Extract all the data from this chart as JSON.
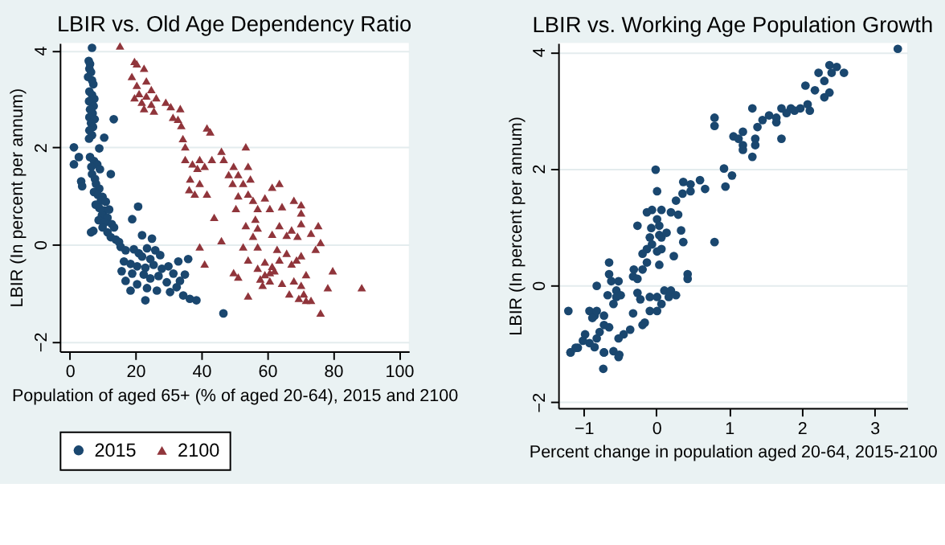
{
  "chart_data": [
    {
      "type": "scatter",
      "title": "LBIR vs. Old Age Dependency Ratio",
      "xlabel": "Population of aged 65+ (% of aged 20-64), 2015 and 2100",
      "ylabel": "LBIR (In percent per annum)",
      "xlim": [
        -3,
        103
      ],
      "ylim": [
        -2.2,
        4.15
      ],
      "xticks": [
        0,
        20,
        40,
        60,
        80,
        100
      ],
      "yticks": [
        -2,
        0,
        2,
        4
      ],
      "grid": "y",
      "legend": "bottom",
      "series": [
        {
          "name": "2015",
          "color": "#1a476f",
          "marker": "circle",
          "x": [
            6.8,
            5.8,
            6.2,
            6.0,
            6.5,
            5.6,
            6.8,
            7.2,
            6.0,
            6.8,
            7.5,
            5.9,
            7.3,
            6.2,
            7.0,
            6.0,
            7.6,
            6.5,
            7.1,
            6.0,
            6.8,
            5.9,
            13.4,
            10.5,
            1.3,
            9.0,
            1.3,
            2.8,
            6.2,
            7.4,
            8.4,
            6.6,
            9.2,
            3.5,
            3.8,
            6.8,
            7.7,
            12.5,
            8.0,
            9.0,
            7.4,
            8.6,
            10.0,
            9.5,
            11.0,
            7.9,
            9.0,
            10.5,
            12.0,
            9.8,
            11.5,
            8.8,
            10.6,
            12.8,
            10.0,
            13.5,
            6.5,
            7.2,
            11.5,
            12.5,
            14.0,
            15.0,
            20.8,
            19.0,
            22.0,
            25.0,
            15.5,
            17.0,
            19.5,
            21.0,
            23.5,
            26.0,
            22.0,
            24.5,
            27.5,
            16.5,
            18.5,
            20.5,
            23.0,
            25.5,
            28.0,
            15.8,
            19.0,
            22.5,
            24.5,
            27.0,
            30.0,
            31.5,
            29.5,
            32.5,
            17.0,
            20.5,
            23.5,
            26.5,
            30.5,
            33.0,
            36.0,
            34.5,
            36.5,
            38.5,
            23.0,
            46.7,
            18.5,
            35.0,
            33.5
          ],
          "values": [
            4.05,
            3.78,
            3.72,
            3.62,
            3.55,
            3.45,
            3.38,
            3.3,
            3.15,
            3.08,
            3.0,
            2.95,
            2.85,
            2.78,
            2.7,
            2.62,
            2.58,
            2.5,
            2.42,
            2.35,
            2.25,
            2.18,
            2.58,
            2.2,
            2.0,
            1.98,
            1.65,
            1.8,
            1.8,
            1.72,
            1.65,
            1.6,
            1.55,
            1.3,
            1.2,
            1.45,
            1.35,
            1.45,
            1.25,
            1.15,
            1.08,
            1.02,
            0.98,
            0.9,
            0.88,
            0.82,
            0.75,
            0.7,
            0.72,
            0.6,
            0.55,
            0.5,
            0.45,
            0.42,
            0.35,
            0.35,
            0.25,
            0.28,
            0.25,
            0.15,
            0.1,
            0.05,
            0.78,
            0.52,
            0.19,
            0.12,
            -0.05,
            -0.12,
            -0.1,
            -0.18,
            -0.08,
            -0.12,
            -0.25,
            -0.3,
            -0.22,
            -0.35,
            -0.4,
            -0.45,
            -0.48,
            -0.42,
            -0.5,
            -0.55,
            -0.6,
            -0.62,
            -0.7,
            -0.65,
            -0.45,
            -0.6,
            -0.78,
            -0.88,
            -0.75,
            -0.82,
            -0.9,
            -0.95,
            -0.98,
            -0.35,
            -0.3,
            -1.05,
            -1.12,
            -1.15,
            -1.15,
            -1.42,
            -0.95,
            -0.62,
            -0.75
          ]
        },
        {
          "name": "2100",
          "color": "#90353b",
          "marker": "triangle",
          "x": [
            15.3,
            19.7,
            20.4,
            22.6,
            18.9,
            23.3,
            20.4,
            24.8,
            21.1,
            23.3,
            19.7,
            26.3,
            21.9,
            24.8,
            22.6,
            25.6,
            29.2,
            30.7,
            33.6,
            31.4,
            32.9,
            33.9,
            34.4,
            35.1,
            41.7,
            42.7,
            35.1,
            37.3,
            39.5,
            41.0,
            38.8,
            43.2,
            36.6,
            39.5,
            36.3,
            38.0,
            41.7,
            46.1,
            46.8,
            53.5,
            49.8,
            54.2,
            48.3,
            51.2,
            49.5,
            52.7,
            54.9,
            51.2,
            54.2,
            63.7,
            61.5,
            59.3,
            55.7,
            68.1,
            70.3,
            57.1,
            60.8,
            64.5,
            70.3,
            50.5,
            43.9,
            56.4,
            53.5,
            57.1,
            63.7,
            67.4,
            70.3,
            75.5,
            55.7,
            61.5,
            65.9,
            69.2,
            73.3,
            76.2,
            46.1,
            52.7,
            57.1,
            63.0,
            74.7,
            39.5,
            41.0,
            49.8,
            51.2,
            54.2,
            57.1,
            59.3,
            61.5,
            63.7,
            65.9,
            67.4,
            70.3,
            60.8,
            57.9,
            54.2,
            58.6,
            60.8,
            64.5,
            68.1,
            70.3,
            71.1,
            73.3,
            76.2,
            79.9,
            78.4,
            88.7,
            71.8,
            68.9,
            66.7,
            69.6,
            71.8,
            59.3,
            62.2
          ],
          "values": [
            4.09,
            3.77,
            3.72,
            3.63,
            3.46,
            3.37,
            3.28,
            3.19,
            3.11,
            3.06,
            3.02,
            3.02,
            2.93,
            2.89,
            2.8,
            2.75,
            2.93,
            2.84,
            2.8,
            2.62,
            2.58,
            2.45,
            2.18,
            2.01,
            2.4,
            2.32,
            1.75,
            1.66,
            1.75,
            1.61,
            1.57,
            1.75,
            1.35,
            1.26,
            1.13,
            1.04,
            1.04,
            1.92,
            1.75,
            2.01,
            1.61,
            1.61,
            1.44,
            1.44,
            1.26,
            1.26,
            1.35,
            1.0,
            1.04,
            1.26,
            1.18,
            0.96,
            0.91,
            0.91,
            0.82,
            0.74,
            0.74,
            0.78,
            0.65,
            0.74,
            0.56,
            0.52,
            0.39,
            0.34,
            0.39,
            0.3,
            0.43,
            0.39,
            0.17,
            0.21,
            0.19,
            0.17,
            0.23,
            0.04,
            0.08,
            -0.05,
            -0.05,
            -0.1,
            -0.1,
            -0.05,
            -0.4,
            -0.58,
            -0.67,
            -0.32,
            -0.49,
            -0.36,
            -0.45,
            -0.32,
            -0.18,
            -0.4,
            -0.23,
            -0.58,
            -0.71,
            -1.06,
            -0.84,
            -0.75,
            -0.8,
            -0.75,
            -0.84,
            -1.02,
            -1.15,
            -1.41,
            -0.54,
            -0.89,
            -0.89,
            -0.62,
            -0.32,
            -1.02,
            -1.11,
            -1.15,
            -0.62,
            -0.54
          ]
        }
      ]
    },
    {
      "type": "scatter",
      "title": "LBIR vs. Working Age Population Growth",
      "xlabel": "Percent change in population aged 20-64, 2015-2100",
      "ylabel": "LBIR (In percent per annum)",
      "xlim": [
        -1.35,
        3.45
      ],
      "ylim": [
        -2.1,
        4.15
      ],
      "xticks": [
        -1,
        0,
        1,
        2,
        3
      ],
      "yticks": [
        -2,
        0,
        2,
        4
      ],
      "grid": "y",
      "series": [
        {
          "color": "#1a476f",
          "marker": "circle",
          "x": [
            3.32,
            2.38,
            2.48,
            2.58,
            2.41,
            2.23,
            2.31,
            2.05,
            2.18,
            2.31,
            2.38,
            2.08,
            1.98,
            1.85,
            1.72,
            2.11,
            1.9,
            1.79,
            1.65,
            1.55,
            1.46,
            1.65,
            1.39,
            1.32,
            1.19,
            1.06,
            1.13,
            1.36,
            1.19,
            1.19,
            1.36,
            1.32,
            1.72,
            0.8,
            0.8,
            0.93,
            1.04,
            0.95,
            0.8,
            0.6,
            0.47,
            0.37,
            0.67,
            0.47,
            0.27,
            0.36,
            0.3,
            0.2,
            0.34,
            0.37,
            0.24,
            -0.01,
            0.01,
            -0.06,
            0.07,
            -0.13,
            0.01,
            0.04,
            0.04,
            0.07,
            0.14,
            -0.06,
            0.07,
            0.01,
            -0.13,
            -0.19,
            -0.09,
            -0.07,
            -0.26,
            -0.13,
            0.04,
            -0.19,
            -0.31,
            -0.32,
            -0.26,
            -0.52,
            -0.55,
            -0.65,
            -0.65,
            -0.62,
            -0.49,
            -0.55,
            -0.67,
            -0.59,
            -0.82,
            0.01,
            0.11,
            0.2,
            0.17,
            0.07,
            0.01,
            -0.09,
            0.27,
            0.43,
            0.43,
            -0.26,
            -0.22,
            -0.09,
            -0.32,
            -0.36,
            -0.45,
            -0.52,
            -0.65,
            -0.85,
            -0.92,
            -0.88,
            -0.82,
            -0.72,
            -0.72,
            -0.78,
            -0.82,
            -0.98,
            -0.92,
            -1.01,
            -1.08,
            -1.18,
            -1.21,
            -0.72,
            -0.52,
            -0.19,
            -0.16,
            -1.18,
            -1.11,
            -0.85,
            -0.72,
            -0.59,
            -0.51,
            -0.73
          ],
          "values": [
            4.05,
            3.77,
            3.74,
            3.64,
            3.64,
            3.64,
            3.5,
            3.42,
            3.34,
            3.22,
            3.3,
            3.1,
            3.03,
            3.03,
            3.03,
            2.99,
            2.99,
            2.95,
            2.87,
            2.91,
            2.83,
            2.79,
            2.71,
            3.03,
            2.63,
            2.55,
            2.51,
            2.51,
            2.4,
            2.32,
            2.4,
            2.2,
            2.51,
            2.87,
            2.73,
            2.0,
            1.88,
            1.69,
            0.74,
            1.8,
            1.73,
            1.77,
            1.65,
            1.61,
            1.45,
            1.57,
            1.21,
            1.25,
            0.94,
            0.74,
            0.5,
            1.98,
            1.61,
            1.29,
            1.29,
            1.25,
            1.13,
            1.02,
            0.86,
            0.82,
            0.9,
            0.7,
            0.62,
            0.58,
            0.62,
            0.54,
            0.82,
            0.98,
            1.02,
            0.39,
            0.35,
            0.27,
            0.27,
            0.15,
            0.11,
            0.07,
            -0.09,
            0.39,
            0.19,
            0.07,
            -0.17,
            -0.2,
            -0.17,
            -0.32,
            -0.01,
            -0.2,
            -0.09,
            -0.09,
            -0.2,
            -0.32,
            -0.44,
            -0.44,
            -0.17,
            0.19,
            0.11,
            -0.13,
            -0.24,
            -0.2,
            -0.48,
            -0.76,
            -0.84,
            -0.91,
            -0.72,
            -0.52,
            -0.44,
            -0.56,
            -0.44,
            -0.52,
            -0.68,
            -0.8,
            -0.91,
            -0.84,
            -0.99,
            -0.95,
            -1.07,
            -1.15,
            -0.44,
            -1.15,
            -1.23,
            -0.68,
            -0.64,
            -1.15,
            -1.07,
            -1.06,
            -1.15,
            -1.13,
            -1.19,
            -1.43
          ]
        }
      ]
    }
  ]
}
